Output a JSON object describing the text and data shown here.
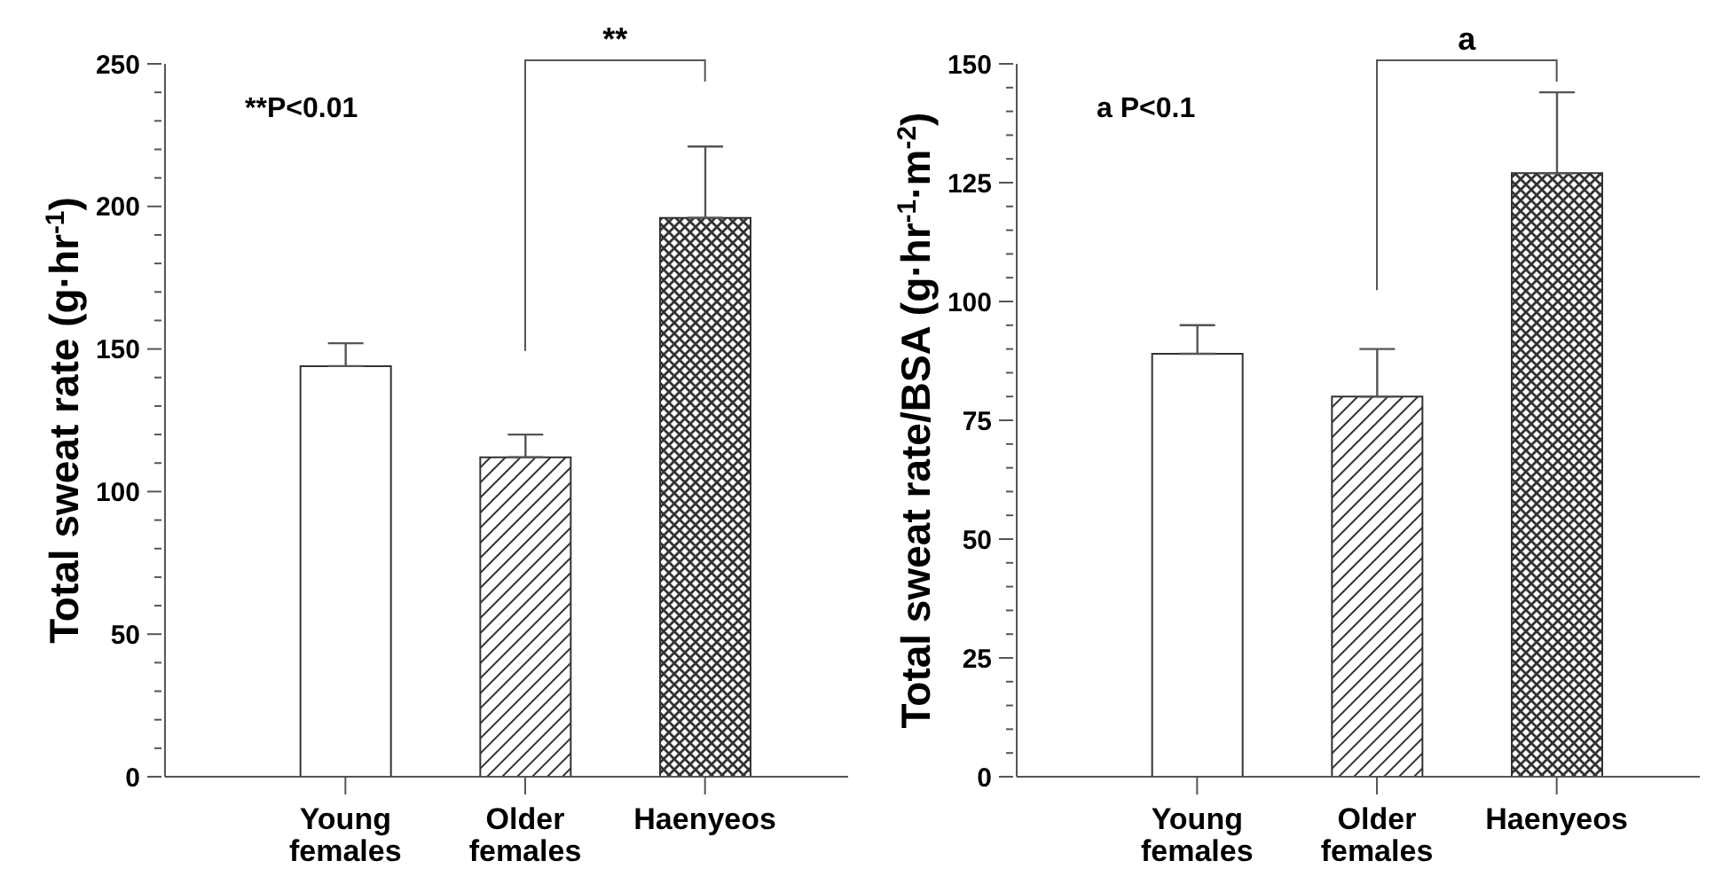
{
  "chart_data": [
    {
      "type": "bar",
      "ylabel": "Total sweat rate (g·hr$^{-1}$)",
      "categories": [
        "Young females",
        "Older females",
        "Haenyeos"
      ],
      "values": [
        144,
        112,
        196
      ],
      "errors": [
        [
          144,
          152
        ],
        [
          112,
          120
        ],
        [
          196,
          221
        ]
      ],
      "colors": [
        "#ffffff",
        "#333333",
        "#333333"
      ],
      "ylim": [
        0,
        250
      ],
      "yticks": [
        0,
        {
          "value": 10,
          "label": null
        },
        {
          "value": 20,
          "label": null
        },
        {
          "value": 30,
          "label": null
        },
        {
          "value": 40,
          "label": null
        },
        50,
        {
          "value": 60,
          "label": null
        },
        {
          "value": 70,
          "label": null
        },
        {
          "value": 80,
          "label": null
        },
        {
          "value": 90,
          "label": null
        },
        100,
        {
          "value": 110,
          "label": null
        },
        {
          "value": 120,
          "label": null
        },
        {
          "value": 130,
          "label": null
        },
        {
          "value": 140,
          "label": null
        },
        150,
        {
          "value": 160,
          "label": null
        },
        {
          "value": 170,
          "label": null
        },
        {
          "value": 180,
          "label": null
        },
        {
          "value": 190,
          "label": null
        },
        200,
        {
          "value": 210,
          "label": null
        },
        {
          "value": 220,
          "label": null
        },
        {
          "value": 230,
          "label": null
        },
        {
          "value": 240,
          "label": null
        },
        250
      ],
      "grid": false,
      "annotations": [
        "**P<0.01",
        "**"
      ]
    },
    {
      "type": "bar",
      "ylabel": "Total sweat rate/BSA (g·hr$^{-1}$·m$^{-2}$)",
      "categories": [
        "Young females",
        "Older females",
        "Haenyeos"
      ],
      "values": [
        89,
        80,
        127
      ],
      "errors": [
        [
          89,
          95
        ],
        [
          80,
          90
        ],
        [
          127,
          144
        ]
      ],
      "colors": [
        "#ffffff",
        "#333333",
        "#333333"
      ],
      "ylim": [
        0,
        150
      ],
      "yticks": [
        0,
        {
          "value": 5,
          "label": null
        },
        {
          "value": 10,
          "label": null
        },
        {
          "value": 15,
          "label": null
        },
        {
          "value": 20,
          "label": null
        },
        25,
        {
          "value": 30,
          "label": null
        },
        {
          "value": 35,
          "label": null
        },
        {
          "value": 40,
          "label": null
        },
        {
          "value": 45,
          "label": null
        },
        50,
        {
          "value": 55,
          "label": null
        },
        {
          "value": 60,
          "label": null
        },
        {
          "value": 65,
          "label": null
        },
        {
          "value": 70,
          "label": null
        },
        75,
        {
          "value": 80,
          "label": null
        },
        {
          "value": 85,
          "label": null
        },
        {
          "value": 90,
          "label": null
        },
        {
          "value": 95,
          "label": null
        },
        100,
        {
          "value": 105,
          "label": null
        },
        {
          "value": 110,
          "label": null
        },
        {
          "value": 115,
          "label": null
        },
        {
          "value": 120,
          "label": null
        },
        125,
        {
          "value": 130,
          "label": null
        },
        {
          "value": 135,
          "label": null
        },
        {
          "value": 140,
          "label": null
        },
        {
          "value": 145,
          "label": null
        },
        150
      ],
      "grid": false,
      "annotations": [
        "a P<0.1",
        "a"
      ]
    }
  ]
}
